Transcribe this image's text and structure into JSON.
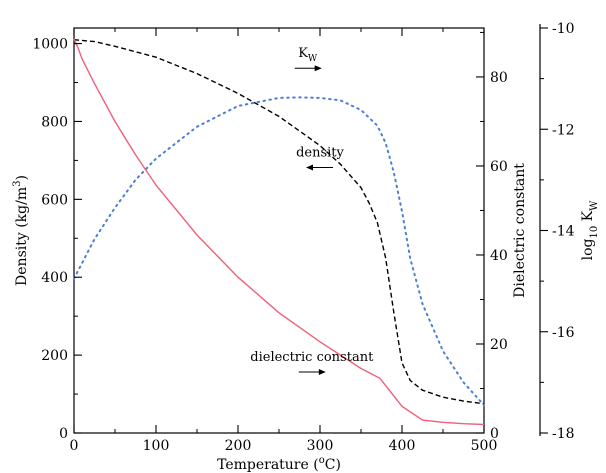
{
  "chart_data": {
    "type": "line",
    "x_axis": {
      "label_main": "Temperature (",
      "label_sup": "o",
      "label_end": "C)",
      "range": [
        0,
        500
      ],
      "ticks": [
        0,
        100,
        200,
        300,
        400,
        500
      ],
      "tick_labels": [
        "0",
        "100",
        "200",
        "300",
        "400",
        "500"
      ]
    },
    "y_axes": {
      "density": {
        "label_main": "Density (kg/m",
        "label_sup": "3",
        "label_end": ")",
        "range": [
          0,
          1040
        ],
        "ticks": [
          0,
          200,
          400,
          600,
          800,
          1000
        ],
        "tick_labels": [
          "0",
          "200",
          "400",
          "600",
          "800",
          "1000"
        ]
      },
      "dielectric": {
        "label": "Dielectric constant",
        "range": [
          0,
          91
        ],
        "ticks": [
          0,
          20,
          40,
          60,
          80
        ],
        "tick_labels": [
          "0",
          "20",
          "40",
          "60",
          "80"
        ]
      },
      "logkw": {
        "label_main": "log",
        "label_sub1": "10",
        "label_mid": " K",
        "label_sub2": "W",
        "range": [
          -18,
          -10
        ],
        "ticks": [
          -18,
          -16,
          -14,
          -12,
          -10
        ],
        "tick_labels": [
          "-18",
          "-16",
          "-14",
          "-12",
          "-10"
        ]
      }
    },
    "series": [
      {
        "axis": "density",
        "color": "#000000",
        "dash": "dashed",
        "x": [
          0,
          25,
          50,
          100,
          150,
          200,
          250,
          300,
          325,
          350,
          360,
          370,
          380,
          390,
          400,
          410,
          425,
          450,
          475,
          500
        ],
        "y": [
          1010,
          1005,
          993,
          965,
          923,
          872,
          813,
          738,
          690,
          630,
          590,
          540,
          450,
          310,
          180,
          135,
          110,
          92,
          82,
          75
        ]
      },
      {
        "axis": "dielectric",
        "color": "#f0607a",
        "dash": "solid",
        "x": [
          0,
          5,
          10,
          25,
          50,
          75,
          100,
          150,
          200,
          250,
          300,
          350,
          373,
          400,
          425,
          450,
          475,
          500
        ],
        "y": [
          88.5,
          86.5,
          84,
          78.5,
          70,
          62.5,
          55.7,
          44.5,
          35,
          27,
          20.5,
          14.5,
          12.3,
          6,
          2.9,
          2.4,
          2.1,
          1.9
        ]
      },
      {
        "axis": "logkw",
        "color": "#4a7fd6",
        "dash": "dotted",
        "x": [
          0,
          25,
          50,
          75,
          100,
          150,
          200,
          250,
          275,
          300,
          325,
          350,
          370,
          380,
          390,
          400,
          410,
          425,
          450,
          475,
          500
        ],
        "y": [
          -14.95,
          -14.17,
          -13.55,
          -13.0,
          -12.58,
          -11.95,
          -11.54,
          -11.38,
          -11.37,
          -11.38,
          -11.43,
          -11.62,
          -11.93,
          -12.27,
          -12.85,
          -13.62,
          -14.55,
          -15.45,
          -16.38,
          -17.0,
          -17.45
        ]
      }
    ],
    "annotations": [
      {
        "text": "K",
        "sub": "W",
        "arrow": "right",
        "x": 285,
        "y_density": 965
      },
      {
        "text": "density",
        "arrow": "left",
        "x": 300,
        "y_density": 710
      },
      {
        "text": "dielectric constant",
        "arrow": "right",
        "x": 290,
        "y_density": 185
      }
    ]
  }
}
